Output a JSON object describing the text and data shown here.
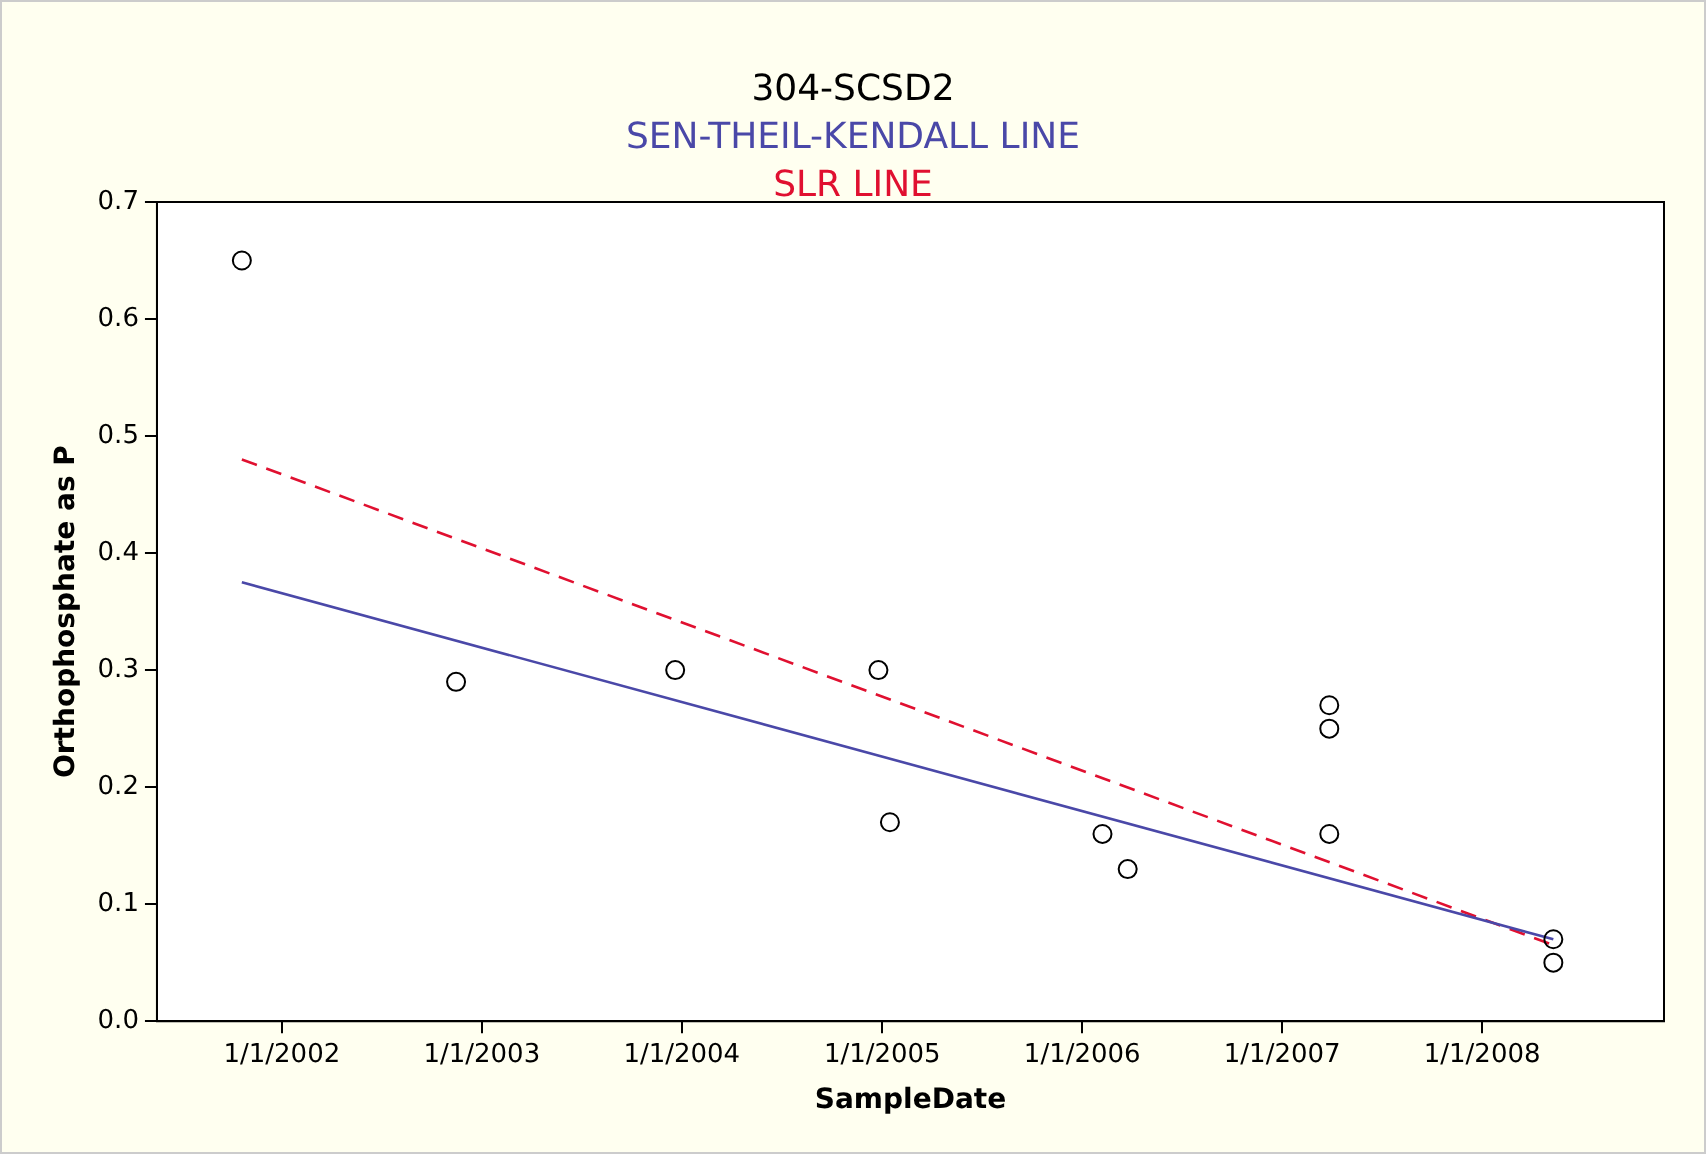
{
  "chart_data": {
    "type": "scatter",
    "title": "304-SCSD2",
    "xlabel": "SampleDate",
    "ylabel": "Orthophosphate as P",
    "xlim": [
      "2001-05-18",
      "2008-11-28"
    ],
    "ylim": [
      0,
      0.7
    ],
    "xticks": [
      {
        "value": "2002-01-01",
        "label": "1/1/2002"
      },
      {
        "value": "2003-01-01",
        "label": "1/1/2003"
      },
      {
        "value": "2004-01-01",
        "label": "1/1/2004"
      },
      {
        "value": "2005-01-01",
        "label": "1/1/2005"
      },
      {
        "value": "2006-01-01",
        "label": "1/1/2006"
      },
      {
        "value": "2007-01-01",
        "label": "1/1/2007"
      },
      {
        "value": "2008-01-01",
        "label": "1/1/2008"
      }
    ],
    "yticks": [
      {
        "value": 0,
        "label": "0.0"
      },
      0.1,
      0.2,
      0.3,
      0.4,
      0.5,
      0.6,
      0.7
    ],
    "grid": false,
    "legend": false,
    "marker": "circle",
    "series": [
      {
        "type": "scatter",
        "color": "#000000",
        "x": [
          "2001-10-20",
          "2002-11-15",
          "2003-12-20",
          "2004-12-25",
          "2005-01-15",
          "2006-02-07",
          "2006-03-25",
          "2007-03-28",
          "2007-03-28",
          "2007-03-28",
          "2008-05-10",
          "2008-05-10"
        ],
        "values": [
          0.65,
          0.29,
          0.3,
          0.3,
          0.17,
          0.16,
          0.13,
          0.27,
          0.25,
          0.16,
          0.07,
          0.05
        ]
      },
      {
        "type": "line",
        "name": "SEN-THEIL-KENDALL LINE",
        "color": "#4a48a8",
        "line_style": "solid",
        "marker": "none",
        "x": [
          "2001-10-20",
          "2008-05-10"
        ],
        "values": [
          0.375,
          0.07
        ]
      },
      {
        "type": "line",
        "name": "SLR LINE",
        "color": "#e01030",
        "line_style": "dashed",
        "marker": "none",
        "x": [
          "2001-10-20",
          "2008-05-10"
        ],
        "values": [
          0.48,
          0.065
        ]
      }
    ]
  }
}
